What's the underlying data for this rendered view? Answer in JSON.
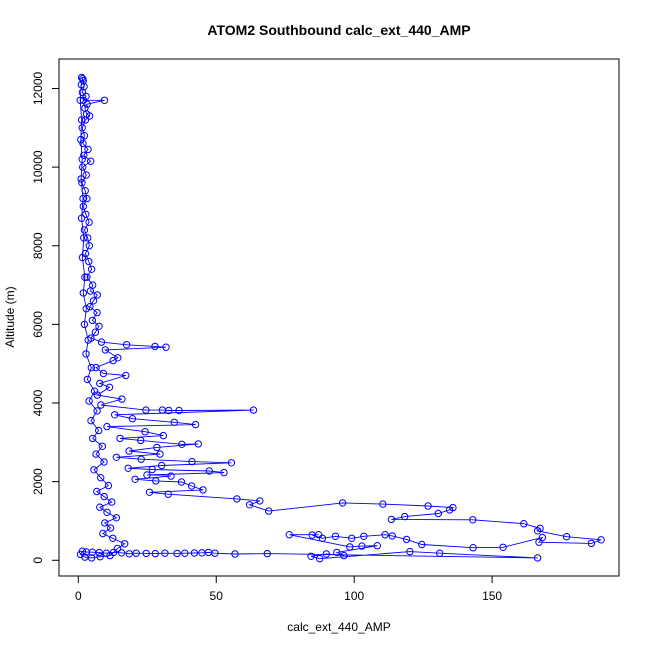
{
  "chart_data": {
    "type": "scatter",
    "title": "ATOM2 Southbound calc_ext_440_AMP",
    "xlabel": "calc_ext_440_AMP",
    "ylabel": "Altitude (m)",
    "xlim": [
      -7,
      196
    ],
    "ylim": [
      -400,
      12750
    ],
    "xticks": [
      0,
      50,
      100,
      150
    ],
    "yticks": [
      0,
      2000,
      4000,
      6000,
      8000,
      10000,
      12000
    ],
    "marker": "open-circle",
    "connected": true,
    "grid": false,
    "legend": "none",
    "series_color": "#0000ff",
    "series": [
      {
        "points": [
          [
            1.2,
            12280
          ],
          [
            1.8,
            12200
          ],
          [
            2.1,
            12050
          ],
          [
            1.5,
            11900
          ],
          [
            2.8,
            11800
          ],
          [
            1.9,
            11700
          ],
          [
            9.5,
            11700
          ],
          [
            3.2,
            11600
          ],
          [
            2.4,
            11500
          ],
          [
            3.0,
            11350
          ],
          [
            4.1,
            11300
          ],
          [
            2.6,
            11200
          ],
          [
            1.4,
            11000
          ],
          [
            2.2,
            10800
          ],
          [
            1.7,
            10600
          ],
          [
            3.5,
            10450
          ],
          [
            2.0,
            10300
          ],
          [
            4.5,
            10150
          ],
          [
            1.6,
            10000
          ],
          [
            2.9,
            9800
          ],
          [
            1.3,
            9600
          ],
          [
            2.5,
            9400
          ],
          [
            3.1,
            9200
          ],
          [
            1.8,
            9000
          ],
          [
            2.7,
            8800
          ],
          [
            3.9,
            8600
          ],
          [
            2.2,
            8400
          ],
          [
            3.4,
            8200
          ],
          [
            4.0,
            8000
          ],
          [
            2.6,
            7800
          ],
          [
            3.8,
            7600
          ],
          [
            4.8,
            7400
          ],
          [
            3.1,
            7200
          ],
          [
            5.2,
            7000
          ],
          [
            4.4,
            6850
          ],
          [
            6.9,
            6750
          ],
          [
            5.5,
            6600
          ],
          [
            4.2,
            6450
          ],
          [
            6.8,
            6300
          ],
          [
            5.1,
            6100
          ],
          [
            7.5,
            5950
          ],
          [
            6.2,
            5800
          ],
          [
            4.6,
            5650
          ],
          [
            8.4,
            5550
          ],
          [
            17.5,
            5480
          ],
          [
            27.8,
            5440
          ],
          [
            31.8,
            5420
          ],
          [
            9.8,
            5350
          ],
          [
            14.3,
            5150
          ],
          [
            12.6,
            5080
          ],
          [
            6.4,
            4900
          ],
          [
            9.1,
            4750
          ],
          [
            17.2,
            4700
          ],
          [
            7.8,
            4500
          ],
          [
            11.3,
            4400
          ],
          [
            6.9,
            4200
          ],
          [
            15.8,
            4100
          ],
          [
            8.2,
            3950
          ],
          [
            24.5,
            3820
          ],
          [
            30.5,
            3820
          ],
          [
            32.8,
            3810
          ],
          [
            36.5,
            3810
          ],
          [
            63.5,
            3820
          ],
          [
            13.2,
            3700
          ],
          [
            19.6,
            3600
          ],
          [
            34.8,
            3510
          ],
          [
            42.5,
            3450
          ],
          [
            10.4,
            3400
          ],
          [
            24.2,
            3270
          ],
          [
            30.8,
            3170
          ],
          [
            15.1,
            3100
          ],
          [
            22.6,
            3050
          ],
          [
            37.5,
            2950
          ],
          [
            43.5,
            2960
          ],
          [
            28.5,
            2870
          ],
          [
            18.4,
            2780
          ],
          [
            29.6,
            2700
          ],
          [
            13.8,
            2620
          ],
          [
            22.8,
            2570
          ],
          [
            41.2,
            2510
          ],
          [
            55.5,
            2480
          ],
          [
            30.2,
            2410
          ],
          [
            18.1,
            2340
          ],
          [
            26.8,
            2310
          ],
          [
            47.5,
            2270
          ],
          [
            52.8,
            2230
          ],
          [
            24.9,
            2170
          ],
          [
            33.6,
            2140
          ],
          [
            20.6,
            2060
          ],
          [
            28.1,
            2020
          ],
          [
            37.4,
            1990
          ],
          [
            41.1,
            1890
          ],
          [
            45.2,
            1790
          ],
          [
            25.8,
            1730
          ],
          [
            32.6,
            1680
          ],
          [
            57.5,
            1560
          ],
          [
            65.8,
            1510
          ],
          [
            62.1,
            1410
          ],
          [
            69.0,
            1250
          ],
          [
            95.8,
            1460
          ],
          [
            110.4,
            1430
          ],
          [
            126.8,
            1380
          ],
          [
            135.8,
            1340
          ],
          [
            134.6,
            1280
          ],
          [
            130.5,
            1190
          ],
          [
            118.3,
            1110
          ],
          [
            113.5,
            1040
          ],
          [
            143.0,
            1030
          ],
          [
            161.5,
            930
          ],
          [
            167.4,
            810
          ],
          [
            166.5,
            750
          ],
          [
            177.0,
            600
          ],
          [
            189.5,
            520
          ],
          [
            186.0,
            430
          ],
          [
            167.0,
            460
          ],
          [
            168.2,
            580
          ],
          [
            154.0,
            330
          ],
          [
            143.1,
            320
          ],
          [
            124.5,
            400
          ],
          [
            119.0,
            530
          ],
          [
            113.8,
            620
          ],
          [
            111.2,
            650
          ],
          [
            103.5,
            610
          ],
          [
            99.1,
            560
          ],
          [
            93.2,
            610
          ],
          [
            88.5,
            560
          ],
          [
            84.8,
            640
          ],
          [
            87.1,
            650
          ],
          [
            76.5,
            650
          ],
          [
            98.4,
            340
          ],
          [
            102.8,
            360
          ],
          [
            108.4,
            370
          ],
          [
            93.7,
            200
          ],
          [
            96.3,
            120
          ],
          [
            89.9,
            160
          ],
          [
            84.4,
            100
          ],
          [
            87.5,
            40
          ],
          [
            120.2,
            220
          ],
          [
            131.0,
            180
          ],
          [
            166.5,
            60
          ],
          [
            68.5,
            170
          ],
          [
            56.8,
            160
          ],
          [
            49.5,
            180
          ],
          [
            47.2,
            200
          ],
          [
            44.8,
            190
          ],
          [
            42.1,
            185
          ],
          [
            38.6,
            180
          ],
          [
            35.8,
            175
          ],
          [
            31.4,
            180
          ],
          [
            27.9,
            170
          ],
          [
            24.6,
            175
          ],
          [
            21.0,
            180
          ],
          [
            18.5,
            165
          ],
          [
            15.7,
            190
          ],
          [
            12.8,
            200
          ],
          [
            10.2,
            180
          ],
          [
            7.6,
            195
          ],
          [
            5.1,
            205
          ],
          [
            2.9,
            210
          ],
          [
            1.5,
            230
          ],
          [
            0.8,
            150
          ],
          [
            2.4,
            80
          ],
          [
            4.8,
            60
          ],
          [
            7.9,
            90
          ],
          [
            11.5,
            120
          ],
          [
            14.2,
            300
          ],
          [
            16.8,
            420
          ],
          [
            12.5,
            560
          ],
          [
            8.9,
            680
          ],
          [
            11.7,
            820
          ],
          [
            9.6,
            950
          ],
          [
            13.8,
            1080
          ],
          [
            10.4,
            1220
          ],
          [
            7.8,
            1350
          ],
          [
            12.1,
            1480
          ],
          [
            9.4,
            1620
          ],
          [
            6.7,
            1750
          ],
          [
            10.9,
            1900
          ],
          [
            8.1,
            2100
          ],
          [
            5.7,
            2300
          ],
          [
            9.3,
            2500
          ],
          [
            6.4,
            2700
          ],
          [
            8.7,
            2900
          ],
          [
            5.2,
            3100
          ],
          [
            7.4,
            3300
          ],
          [
            4.6,
            3550
          ],
          [
            6.8,
            3800
          ],
          [
            3.9,
            4050
          ],
          [
            5.9,
            4300
          ],
          [
            3.3,
            4600
          ],
          [
            4.7,
            4900
          ],
          [
            2.8,
            5250
          ],
          [
            3.6,
            5600
          ],
          [
            2.2,
            6000
          ],
          [
            2.9,
            6400
          ],
          [
            1.8,
            6800
          ],
          [
            2.4,
            7200
          ],
          [
            1.5,
            7700
          ],
          [
            2.0,
            8200
          ],
          [
            1.2,
            8700
          ],
          [
            1.7,
            9200
          ],
          [
            1.0,
            9700
          ],
          [
            1.4,
            10200
          ],
          [
            0.9,
            10700
          ],
          [
            1.2,
            11200
          ],
          [
            0.7,
            11700
          ],
          [
            1.1,
            12100
          ],
          [
            1.6,
            12250
          ]
        ]
      }
    ]
  }
}
